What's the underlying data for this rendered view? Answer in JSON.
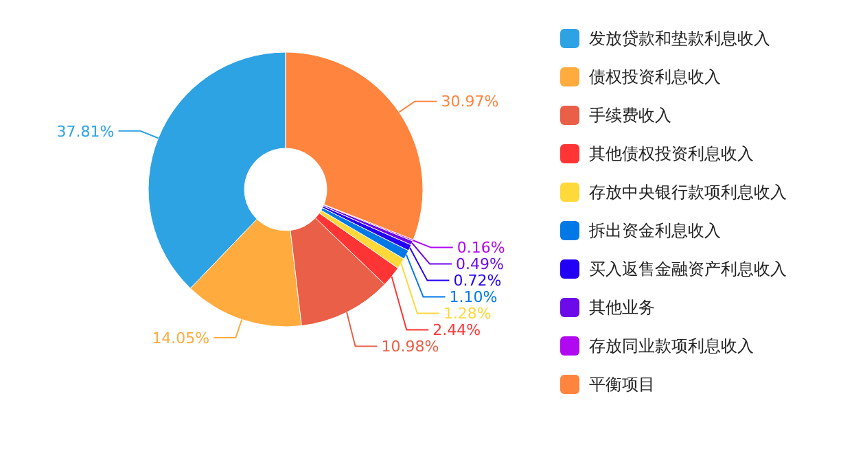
{
  "chart_data": {
    "type": "donut",
    "categories": [
      "发放贷款和垫款利息收入",
      "债权投资利息收入",
      "手续费收入",
      "其他债权投资利息收入",
      "存放中央银行款项利息收入",
      "拆出资金利息收入",
      "买入返售金融资产利息收入",
      "其他业务",
      "存放同业款项利息收入",
      "平衡项目"
    ],
    "values": [
      37.81,
      14.05,
      10.98,
      2.44,
      1.28,
      1.1,
      0.72,
      0.49,
      0.16,
      30.97
    ],
    "value_labels": [
      "37.81%",
      "14.05%",
      "10.98%",
      "2.44%",
      "1.28%",
      "1.10%",
      "0.72%",
      "0.49%",
      "0.16%",
      "30.97%"
    ],
    "colors": [
      "#2ea3e3",
      "#ffab3d",
      "#e95f47",
      "#ff3535",
      "#ffd83a",
      "#0079e7",
      "#2200f5",
      "#6c0ae9",
      "#b108f2",
      "#ff843d"
    ],
    "legend": "right"
  }
}
